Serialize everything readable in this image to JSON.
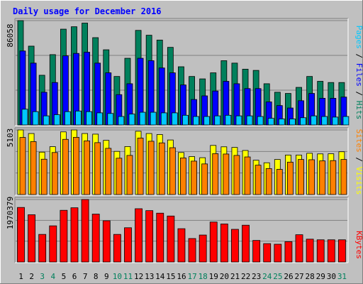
{
  "chart_data": {
    "type": "bar",
    "title": "Daily usage for December 2016",
    "colors": {
      "hits": "#00805c",
      "files": "#0000ff",
      "pages": "#00c8ff",
      "visits": "#ffff00",
      "sites": "#ff8000",
      "kbytes": "#ff0000",
      "title": "#0000ff",
      "weekend_label": "#00805c",
      "weekday_label": "#000000",
      "background": "#c0c0c0",
      "panel": "#c0c0c0"
    },
    "legend": {
      "pages": "Pages",
      "files": "Files",
      "hits": "Hits",
      "sites": "Sites",
      "visits": "Visits",
      "kbytes": "KBytes",
      "separator": " / "
    },
    "days": [
      "1",
      "2",
      "3",
      "4",
      "5",
      "6",
      "7",
      "8",
      "9",
      "10",
      "11",
      "12",
      "13",
      "14",
      "15",
      "16",
      "17",
      "18",
      "19",
      "20",
      "21",
      "22",
      "23",
      "24",
      "25",
      "26",
      "27",
      "28",
      "29",
      "30",
      "31"
    ],
    "weekend_days": [
      "3",
      "4",
      "10",
      "11",
      "17",
      "18",
      "24",
      "25",
      "31"
    ],
    "panels": [
      {
        "id": "hits-files-pages",
        "max_label": "86058",
        "max": 86058,
        "series": [
          {
            "name": "Hits",
            "key": "hits",
            "values": [
              86058,
              65000,
              41000,
              58000,
              79000,
              81000,
              84000,
              72000,
              62000,
              40000,
              55000,
              78000,
              74000,
              70000,
              64000,
              48000,
              40000,
              38000,
              43000,
              53000,
              51000,
              46000,
              45000,
              34000,
              27000,
              26000,
              31000,
              40000,
              36000,
              35000,
              35000
            ]
          },
          {
            "name": "Files",
            "key": "files",
            "values": [
              61000,
              51000,
              27000,
              35000,
              57000,
              59000,
              60000,
              51000,
              43000,
              25000,
              34000,
              55000,
              53000,
              47000,
              43000,
              33000,
              21000,
              24000,
              28000,
              36000,
              34000,
              30000,
              30000,
              19000,
              16000,
              14000,
              20000,
              26000,
              22000,
              22000,
              23000
            ]
          },
          {
            "name": "Pages",
            "key": "pages",
            "values": [
              13000,
              11000,
              7500,
              8500,
              11000,
              11500,
              11000,
              10000,
              9500,
              7000,
              9000,
              10500,
              10500,
              10000,
              10000,
              8000,
              7000,
              7000,
              7500,
              8000,
              7500,
              7500,
              7000,
              5500,
              5000,
              5000,
              6000,
              7500,
              7000,
              6500,
              7000
            ]
          }
        ]
      },
      {
        "id": "visits-sites",
        "max_label": "5103",
        "max": 5103,
        "series": [
          {
            "name": "Visits",
            "key": "visits",
            "values": [
              5103,
              4820,
              3350,
              3780,
              4950,
              5103,
              4820,
              4770,
              4280,
              3410,
              3790,
              5000,
              4820,
              4740,
              4310,
              3320,
              3000,
              2910,
              3880,
              3770,
              3720,
              3480,
              2710,
              2510,
              2770,
              3120,
              3120,
              3260,
              3210,
              3220,
              3380
            ]
          },
          {
            "name": "Sites",
            "key": "sites",
            "values": [
              4510,
              4180,
              2790,
              3320,
              4360,
              4520,
              4240,
              4100,
              3650,
              2870,
              3090,
              4460,
              4210,
              4080,
              3700,
              2890,
              2640,
              2420,
              3230,
              3200,
              3090,
              2970,
              2320,
              2050,
              1990,
              2560,
              2770,
              2750,
              2660,
              2680,
              2770
            ]
          }
        ]
      },
      {
        "id": "kbytes",
        "max_label": "1970379",
        "max": 1970379,
        "series": [
          {
            "name": "KBytes",
            "key": "kbytes",
            "values": [
              1720000,
              1490000,
              870000,
              1140000,
              1630000,
              1710000,
              1970379,
              1510000,
              1300000,
              870000,
              1080000,
              1680000,
              1620000,
              1540000,
              1450000,
              1050000,
              740000,
              850000,
              1260000,
              1200000,
              1030000,
              1160000,
              680000,
              580000,
              560000,
              640000,
              860000,
              720000,
              700000,
              700000,
              700000
            ]
          }
        ]
      }
    ],
    "grid": true,
    "ylim": [
      0,
      null
    ]
  }
}
